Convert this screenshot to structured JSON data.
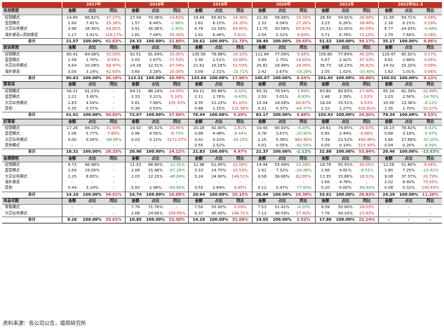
{
  "years": [
    "2017年",
    "2018年",
    "2019年",
    "2020年",
    "2021年",
    "2022年Q1-3"
  ],
  "col_headers": [
    "金额",
    "占比",
    "同比"
  ],
  "sections": [
    {
      "company": "名创家居",
      "rows": [
        {
          "label": "经销模式",
          "cells": [
            "14.84",
            "68.82%",
            "37.27%",
            "17.04",
            "70.06%",
            "14.82%",
            "19.49",
            "65.81%",
            "14.36%",
            "22.30",
            "58.06%",
            "14.39%",
            "28.30",
            "54.91%",
            "26.90%",
            "21.00",
            "59.71%",
            "0.08%"
          ]
        },
        {
          "label": "直营模式",
          "cells": [
            "1.60",
            "7.41%",
            "25.36%",
            "1.57",
            "6.44%",
            "-1.98%",
            "1.82",
            "6.15%",
            "16.25%",
            "2.32",
            "6.04%",
            "27.26%",
            "3.23",
            "6.26%",
            "39.44%",
            "2.16",
            "6.15%",
            "0.29%"
          ]
        },
        {
          "label": "大宗业务模式",
          "cells": [
            "3.96",
            "18.35%",
            "59.82%",
            "3.91",
            "16.06%",
            "-1.30%",
            "6.78",
            "21.59%",
            "63.65%",
            "11.75",
            "30.58%",
            "83.67%",
            "15.51",
            "32.05%",
            "40.59%",
            "8.77",
            "24.93%",
            "-0.48%"
          ]
        },
        {
          "label": "海外渠道+其他渠道",
          "cells": [
            "1.17",
            "5.41%",
            "118.17%",
            "1.81",
            "7.44%",
            "55.30%",
            "1.91",
            "6.44%",
            "5.61%",
            "2.04",
            "5.32%",
            "6.80%",
            "3.71",
            "6.78%",
            "71.15%",
            "2.79",
            "7.66%",
            "0.28%"
          ]
        },
        {
          "label": "合计",
          "total": true,
          "cells": [
            "21.57",
            "100.00%",
            "42.63%",
            "24.33",
            "100.00%",
            "12.80%",
            "29.62",
            "100.00%",
            "21.75%",
            "38.40",
            "100.00%",
            "29.65%",
            "51.53",
            "100.00%",
            "34.17%",
            "35.17",
            "100.00%",
            "0.06%"
          ]
        }
      ]
    },
    {
      "company": "欧派家居",
      "rows": [
        {
          "label": "经销模式",
          "cells": [
            "80.41",
            "84.08%",
            "33.50%",
            "92.51",
            "81.64%",
            "15.05%",
            "105.56",
            "78.98%",
            "14.10%",
            "111.84",
            "77.09%",
            "5.95%",
            "156.80",
            "77.84%",
            "40.20%",
            "129.47",
            "80.91%",
            "0.17%"
          ]
        },
        {
          "label": "直营模式",
          "cells": [
            "2.58",
            "2.70%",
            "8.56%",
            "3.03",
            "2.67%",
            "17.53%",
            "3.36",
            "2.51%",
            "10.84%",
            "3.99",
            "2.75%",
            "14.65%",
            "5.87",
            "2.92%",
            "47.33%",
            "4.61",
            "2.88%",
            "0.06%"
          ]
        },
        {
          "label": "大宗业务模式",
          "cells": [
            "9.64",
            "10.08%",
            "68.47%",
            "14.18",
            "12.51%",
            "47.04%",
            "21.62",
            "16.18%",
            "52.53%",
            "26.82",
            "18.49%",
            "24.05%",
            "36.73",
            "18.23%",
            "36.92%",
            "24.32",
            "15.20%",
            "0.09%"
          ]
        },
        {
          "label": "海外渠道",
          "cells": [
            "3.00",
            "3.14%",
            "42.60%",
            "3.60",
            "3.18%",
            "20.00%",
            "3.09",
            "2.31%",
            "-15.71%",
            "2.42",
            "1.67%",
            "-19.29%",
            "2.05",
            "1.02%",
            "-15.40%",
            "1.62",
            "1.01%",
            "0.06%"
          ]
        },
        {
          "label": "合计",
          "total": true,
          "cells": [
            "95.63",
            "100.00%",
            "36.19%",
            "113.31",
            "100.00%",
            "18.49%",
            "133.66",
            "100.00%",
            "17.96%",
            "145.07",
            "100.00%",
            "8.54%",
            "201.45",
            "100.00%",
            "38.86%",
            "160.02",
            "100.00%",
            "0.12%"
          ]
        }
      ]
    },
    {
      "company": "索菲亚",
      "rows": [
        {
          "label": "经销模式",
          "cells": [
            "56.21",
            "91.23%",
            "-",
            "64.11",
            "88.24%",
            "14.05%",
            "64.11",
            "83.86%",
            "-0.02%",
            "65.32",
            "78.54%",
            "1.89%",
            "83.80",
            "80.83%",
            "27.99%",
            "65.34",
            "82.39%",
            "12.99%"
          ]
        },
        {
          "label": "直营模式",
          "cells": [
            "2.22",
            "3.60%",
            "-",
            "2.33",
            "3.21%",
            "5.16%",
            "2.11",
            "2.76%",
            "-9.43%",
            "2.50",
            "3.01%",
            "-8.93%",
            "2.48",
            "2.39%",
            "1.52%",
            "2.03",
            "2.56%",
            "-14.76%"
          ]
        },
        {
          "label": "大宗业务模式",
          "cells": [
            "2.83",
            "4.59%",
            "-",
            "5.81",
            "7.99%",
            "105.30%",
            "9.35",
            "12.23%",
            "61.03%",
            "15.04",
            "18.08%",
            "60.87%",
            "16.04",
            "15.51%",
            "6.63%",
            "10.00",
            "13.36%",
            "-8.12%"
          ]
        },
        {
          "label": "其他",
          "cells": [
            "0.35",
            "0.57%",
            "-",
            "0.38",
            "0.53%",
            "-",
            "0.88",
            "1.15%",
            "131.58%",
            "0.31",
            "0.37%",
            "-64.77%",
            "1.32",
            "1.27%",
            "325.81%",
            "1.35",
            "1.70%",
            "31.07%"
          ]
        },
        {
          "label": "合计",
          "total": true,
          "cells": [
            "61.61",
            "100.00%",
            "36.02%",
            "72.67",
            "100.00%",
            "17.94%",
            "76.44",
            "100.00%",
            "5.20%",
            "83.17",
            "100.00%",
            "8.80%",
            "103.43",
            "100.00%",
            "24.36%",
            "79.34",
            "100.00%",
            "9.53%"
          ]
        }
      ]
    },
    {
      "company": "好莱客",
      "rows": [
        {
          "label": "经销模式",
          "cells": [
            "17.26",
            "94.23%",
            "31.93%",
            "19.92",
            "95.32%",
            "15.45%",
            "20.28",
            "92.90%",
            "1.81%",
            "19.43",
            "90.93%",
            "-4.20%",
            "24.61",
            "74.85%",
            "26.63%",
            "16.13",
            "78.82%",
            "-6.92%"
          ]
        },
        {
          "label": "直营模式",
          "cells": [
            "1.06",
            "5.77%",
            "7.80%",
            "0.96",
            "4.56%",
            "-8.73%",
            "0.98",
            "4.48%",
            "-8.44%",
            "0.78",
            "3.67%",
            "-20.40%",
            "0.85",
            "2.44%",
            "8.88%",
            "0.68",
            "3.18%",
            "-5.47%"
          ]
        },
        {
          "label": "大宗业务模式",
          "cells": [
            "0.00",
            "0.00%",
            "-99.85%",
            "0.03",
            "0.12%",
            "3271.57%",
            "0.02",
            "0.10%",
            "-25.25%",
            "1.15",
            "5.38%",
            "962.60%",
            "7.39",
            "22.52%",
            "499.48%",
            "3.66",
            "17.89%",
            "-37.20%"
          ]
        },
        {
          "label": "其他模式",
          "cells": [
            "-",
            "-",
            "-",
            "-",
            "-",
            "-",
            "0.55",
            "2.52%",
            "-",
            "0.01",
            "0.05%",
            "-92.55%",
            "0.05",
            "0.14%",
            "315.30%",
            "0.04",
            "0.20%",
            "-9.39%"
          ]
        },
        {
          "label": "合计",
          "total": true,
          "cells": [
            "18.31",
            "100.00%",
            "29.33%",
            "20.90",
            "100.00%",
            "14.12%",
            "21.83",
            "100.00%",
            "4.47%",
            "21.37",
            "100.00%",
            "-2.12%",
            "32.88",
            "100.00%",
            "53.84%",
            "20.46",
            "100.00%",
            "-13.63%"
          ]
        }
      ]
    },
    {
      "company": "金牌厨柜",
      "rows": [
        {
          "label": "经销模式",
          "cells": [
            "9.73",
            "68.98%",
            "-",
            "11.53",
            "68.90%",
            "-22.31%",
            "12.98",
            "61.95%",
            "12.04%",
            "14.44",
            "55.49%",
            "11.28%",
            "18.78",
            "55.55%",
            "30.05%",
            "12.58",
            "51.80%",
            "6.44%"
          ]
        },
        {
          "label": "直营模式",
          "cells": [
            "2.69",
            "19.06%",
            "-",
            "2.68",
            "15.98%",
            "-87.28%",
            "3.10",
            "14.75%",
            "15.53%",
            "1.91",
            "7.32%",
            "-19.48%",
            "1.66",
            "4.81%",
            "-8.51%",
            "1.80",
            "7.25%",
            "-23.42%"
          ]
        },
        {
          "label": "大宗业务模式",
          "cells": [
            "1.25",
            "8.83%",
            "-",
            "2.03",
            "12.15%",
            "-48.84%",
            "5.24",
            "24.90%",
            "149.51%",
            "9.58",
            "36.68%",
            "82.85%",
            "13.35",
            "33.86%",
            "18.51%",
            "9.08",
            "37.37%",
            "20.79%"
          ]
        },
        {
          "label": "海外渠道",
          "cells": [
            "-",
            "-",
            "-",
            "-",
            "-",
            "-",
            "-",
            "-",
            "-",
            "-",
            "-",
            "-",
            "1.66",
            "4.78%",
            "-",
            "2.02",
            "8.40%",
            "73.55%"
          ]
        },
        {
          "label": "其他",
          "cells": [
            "0.44",
            "3.14%",
            "-",
            "0.50",
            "2.98%",
            "-65.60%",
            "0.55",
            "2.64%",
            "9.45%",
            "0.12",
            "0.47%",
            "-77.60%",
            "0.20",
            "0.60%",
            "-65.80%",
            "0.08",
            "0.32%",
            "100.43%"
          ]
        },
        {
          "label": "合计",
          "total": true,
          "cells": [
            "14.10",
            "100.00%",
            "34.51%",
            "16.74",
            "100.00%",
            "16.09%",
            "20.94",
            "100.00%",
            "25.15%",
            "26.04",
            "100.00%",
            "24.30%",
            "33.61",
            "100.00%",
            "29.83%",
            "24.29",
            "100.00%",
            "11.20%"
          ]
        }
      ]
    },
    {
      "company": "尚品宅配",
      "rows": [
        {
          "label": "零售模式",
          "cells": [
            "-",
            "-",
            "-",
            "7.79",
            "71.76%",
            "-",
            "7.56",
            "55.00%",
            "0.59%",
            "7.53",
            "51.41%",
            "-4.20%",
            "9.09",
            "50.90%",
            "29.03%",
            "-",
            "-",
            "-"
          ]
        },
        {
          "label": "大宗业务模式",
          "cells": [
            "-",
            "-",
            "-",
            "2.68",
            "24.66%",
            "106.65%",
            "6.37",
            "45.00%",
            "146.71%",
            "7.12",
            "48.59%",
            "17.40%",
            "7.76",
            "49.10%",
            "23.43%",
            "-",
            "-",
            "-"
          ]
        },
        {
          "label": "合计",
          "total": true,
          "cells": [
            "8.26",
            "100.00%",
            "33.01%",
            "10.85",
            "100.00%",
            "31.30%",
            "14.29",
            "100.00%",
            "31.68%",
            "14.65",
            "100.00%",
            "2.52%",
            "17.89",
            "100.00%",
            "22.14%",
            "-",
            "-",
            "-"
          ]
        }
      ]
    }
  ],
  "source": "资料来源：各公司公告，德邦研究所",
  "colors": {
    "header_red": "#c82d1d",
    "subheader_gray": "#dcdcdc",
    "negative": "#1c8a2a",
    "positive_growth": "#cc1f1f"
  }
}
